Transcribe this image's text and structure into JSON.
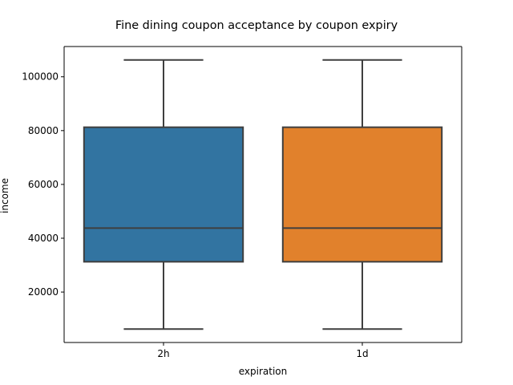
{
  "chart_data": {
    "type": "box",
    "title": "Fine dining coupon acceptance by coupon expiry",
    "xlabel": "expiration",
    "ylabel": "income",
    "categories": [
      "2h",
      "1d"
    ],
    "boxes": [
      {
        "category": "2h",
        "whislo": 6250,
        "q1": 31250,
        "median": 43750,
        "q3": 81250,
        "whishi": 106250,
        "color": "#3274a1"
      },
      {
        "category": "1d",
        "whislo": 6250,
        "q1": 31250,
        "median": 43750,
        "q3": 81250,
        "whishi": 106250,
        "color": "#e1812c"
      }
    ],
    "ylim": [
      1250,
      111250
    ],
    "yticks": [
      20000,
      40000,
      60000,
      80000,
      100000
    ],
    "ytick_labels": [
      "20000",
      "40000",
      "60000",
      "80000",
      "100000"
    ],
    "grid": false
  }
}
